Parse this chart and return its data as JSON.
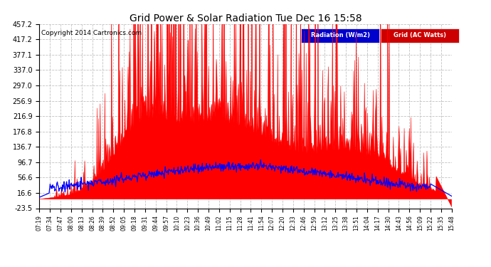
{
  "title": "Grid Power & Solar Radiation Tue Dec 16 15:58",
  "copyright": "Copyright 2014 Cartronics.com",
  "background_color": "#ffffff",
  "plot_bg_color": "#ffffff",
  "grid_color": "#aaaaaa",
  "red_color": "#ff0000",
  "blue_color": "#0000ff",
  "ylim": [
    -23.5,
    457.2
  ],
  "yticks": [
    -23.5,
    16.6,
    56.6,
    96.7,
    136.7,
    176.8,
    216.9,
    256.9,
    297.0,
    337.0,
    377.1,
    417.2,
    457.2
  ],
  "ytick_labels": [
    "-23.5",
    "16.6",
    "56.6",
    "96.7",
    "136.7",
    "176.8",
    "216.9",
    "256.9",
    "297.0",
    "337.0",
    "377.1",
    "417.2",
    "457.2"
  ],
  "x_labels": [
    "07:19",
    "07:34",
    "07:47",
    "08:00",
    "08:13",
    "08:26",
    "08:39",
    "08:52",
    "09:05",
    "09:18",
    "09:31",
    "09:44",
    "09:57",
    "10:10",
    "10:23",
    "10:36",
    "10:49",
    "11:02",
    "11:15",
    "11:28",
    "11:41",
    "11:54",
    "12:07",
    "12:20",
    "12:33",
    "12:46",
    "12:59",
    "13:12",
    "13:25",
    "13:38",
    "13:51",
    "14:04",
    "14:17",
    "14:30",
    "14:43",
    "14:56",
    "15:09",
    "15:22",
    "15:35",
    "15:48"
  ],
  "legend_radiation_label": "Radiation (W/m2)",
  "legend_grid_label": "Grid (AC Watts)",
  "legend_radiation_bg": "#0000cc",
  "legend_grid_bg": "#cc0000"
}
